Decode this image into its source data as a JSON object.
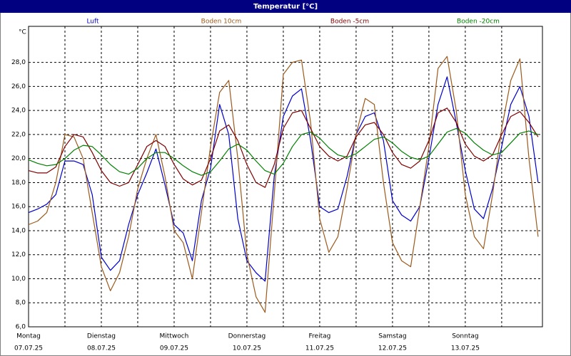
{
  "chart_data": {
    "type": "line",
    "title": "Temperatur [°C]",
    "y_label": "°C",
    "x": [
      0,
      0.125,
      0.25,
      0.375,
      0.5,
      0.625,
      0.75,
      0.875,
      1,
      1.125,
      1.25,
      1.375,
      1.5,
      1.625,
      1.75,
      1.875,
      2,
      2.125,
      2.25,
      2.375,
      2.5,
      2.625,
      2.75,
      2.875,
      3,
      3.125,
      3.25,
      3.375,
      3.5,
      3.625,
      3.75,
      3.875,
      4,
      4.125,
      4.25,
      4.375,
      4.5,
      4.625,
      4.75,
      4.875,
      5,
      5.125,
      5.25,
      5.375,
      5.5,
      5.625,
      5.75,
      5.875,
      6,
      6.125,
      6.25,
      6.375,
      6.5,
      6.625,
      6.75,
      6.875,
      7
    ],
    "series": [
      {
        "name": "Luft",
        "color": "#0000cc",
        "values": [
          15.5,
          15.8,
          16.2,
          17.0,
          19.8,
          19.8,
          19.5,
          17.0,
          11.8,
          10.7,
          11.5,
          14.5,
          17.0,
          18.8,
          20.8,
          17.8,
          14.5,
          13.8,
          11.5,
          16.5,
          19.2,
          24.5,
          22.0,
          15.0,
          11.5,
          10.5,
          9.8,
          18.5,
          23.5,
          25.2,
          25.8,
          21.5,
          16.0,
          15.5,
          15.8,
          18.5,
          22.0,
          23.5,
          23.8,
          21.5,
          16.5,
          15.3,
          14.8,
          16.0,
          20.0,
          24.5,
          26.8,
          23.0,
          19.0,
          15.8,
          15.0,
          17.5,
          21.0,
          24.5,
          26.0,
          23.5,
          18.0
        ]
      },
      {
        "name": "Boden 10cm",
        "color": "#9c5a1c",
        "values": [
          14.5,
          14.8,
          15.5,
          18.0,
          22.0,
          21.8,
          20.0,
          15.5,
          11.0,
          9.0,
          10.5,
          13.5,
          17.5,
          20.0,
          22.0,
          18.5,
          14.0,
          13.0,
          10.0,
          15.5,
          21.0,
          25.5,
          26.5,
          20.0,
          12.0,
          8.5,
          7.2,
          17.0,
          27.0,
          28.0,
          28.2,
          23.0,
          15.0,
          12.2,
          13.5,
          17.5,
          22.0,
          25.0,
          24.5,
          18.0,
          13.0,
          11.5,
          11.0,
          16.0,
          21.0,
          27.5,
          28.5,
          24.0,
          17.0,
          13.5,
          12.5,
          17.0,
          22.5,
          26.5,
          28.3,
          20.0,
          13.5
        ]
      },
      {
        "name": "Boden -5cm",
        "color": "#800000",
        "values": [
          19.0,
          18.8,
          18.8,
          19.3,
          21.0,
          22.0,
          21.8,
          20.5,
          19.0,
          18.0,
          17.7,
          18.0,
          19.5,
          21.0,
          21.5,
          21.0,
          19.5,
          18.3,
          17.8,
          18.2,
          20.0,
          22.3,
          22.8,
          21.5,
          19.5,
          18.0,
          17.6,
          19.5,
          22.5,
          23.8,
          24.0,
          22.5,
          21.0,
          20.2,
          19.8,
          20.2,
          21.8,
          22.8,
          23.0,
          22.0,
          20.5,
          19.5,
          19.2,
          19.8,
          21.5,
          23.8,
          24.2,
          23.0,
          21.2,
          20.2,
          19.8,
          20.3,
          22.0,
          23.5,
          23.9,
          23.0,
          21.8
        ]
      },
      {
        "name": "Boden -20cm",
        "color": "#008000",
        "values": [
          19.9,
          19.6,
          19.4,
          19.5,
          20.0,
          20.7,
          21.1,
          21.0,
          20.3,
          19.5,
          18.9,
          18.7,
          19.2,
          20.0,
          20.5,
          20.5,
          20.0,
          19.4,
          18.9,
          18.6,
          18.9,
          19.8,
          20.8,
          21.2,
          20.7,
          19.8,
          19.0,
          18.7,
          19.6,
          21.0,
          22.0,
          22.2,
          21.7,
          20.9,
          20.3,
          20.1,
          20.4,
          21.0,
          21.6,
          21.8,
          21.3,
          20.6,
          20.1,
          19.9,
          20.2,
          21.2,
          22.2,
          22.5,
          22.1,
          21.3,
          20.7,
          20.3,
          20.5,
          21.3,
          22.1,
          22.3,
          22.0
        ]
      }
    ],
    "xlim": [
      0,
      7.06
    ],
    "xticks": [
      {
        "value": 0,
        "label": "Montag"
      },
      {
        "value": 1,
        "label": "Dienstag"
      },
      {
        "value": 2,
        "label": "Mittwoch"
      },
      {
        "value": 3,
        "label": "Donnerstag"
      },
      {
        "value": 4,
        "label": "Freitag"
      },
      {
        "value": 5,
        "label": "Samstag"
      },
      {
        "value": 6,
        "label": "Sonntag"
      }
    ],
    "xtick_dates": [
      "07.07.25",
      "08.07.25",
      "09.07.25",
      "10.07.25",
      "11.07.25",
      "12.07.25",
      "13.07.25"
    ],
    "xminorticks": [
      0.5,
      1.5,
      2.5,
      3.5,
      4.5,
      5.5,
      6.5
    ],
    "ylim": [
      6,
      31
    ],
    "yticks": [
      {
        "value": 6,
        "label": "6,0"
      },
      {
        "value": 8,
        "label": "8,0"
      },
      {
        "value": 10,
        "label": "10,0"
      },
      {
        "value": 12,
        "label": "12,0"
      },
      {
        "value": 14,
        "label": "14,0"
      },
      {
        "value": 16,
        "label": "16,0"
      },
      {
        "value": 18,
        "label": "18,0"
      },
      {
        "value": 20,
        "label": "20,0"
      },
      {
        "value": 22,
        "label": "22,0"
      },
      {
        "value": 24,
        "label": "24,0"
      },
      {
        "value": 26,
        "label": "26,0"
      },
      {
        "value": 28,
        "label": "28,0"
      }
    ],
    "grid": true
  }
}
